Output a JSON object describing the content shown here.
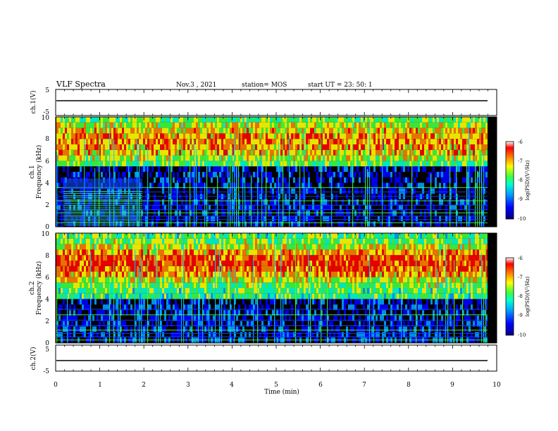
{
  "header": {
    "title": "VLF Spectra",
    "date": "Nov.3 , 2021",
    "station": "station= MOS",
    "start": "start UT = 23: 50: 1"
  },
  "chart_data": {
    "type": "heatmap",
    "x_axis": {
      "label": "Time (min)",
      "range": [
        0,
        10
      ],
      "ticks": [
        "0",
        "1",
        "2",
        "3",
        "4",
        "5",
        "6",
        "7",
        "8",
        "9",
        "10"
      ]
    },
    "panels": [
      {
        "label": "ch.1(V)",
        "kind": "waveform",
        "ylim": [
          -5,
          5
        ],
        "ticks": [
          "5",
          "-5"
        ],
        "baseline": 0
      },
      {
        "label": "ch.1\nFrequency (kHz)",
        "label_lines": [
          "ch.1",
          "Frequency (kHz)"
        ],
        "kind": "spectrogram",
        "ylim": [
          0,
          10
        ],
        "ticks": [
          "0",
          "2",
          "4",
          "6",
          "8",
          "10"
        ],
        "colorbar": {
          "label": "log(PSD)(V²/Hz)",
          "range": [
            -10,
            -6
          ],
          "ticks": [
            "-6",
            "-7",
            "-8",
            "-9",
            "-10"
          ]
        }
      },
      {
        "label": "ch.2\nFrequency (kHz)",
        "label_lines": [
          "ch.2",
          "Frequency (kHz)"
        ],
        "kind": "spectrogram",
        "ylim": [
          0,
          10
        ],
        "ticks": [
          "0",
          "2",
          "4",
          "6",
          "8",
          "10"
        ],
        "colorbar": {
          "label": "log(PSD)(V²/Hz)",
          "range": [
            -10,
            -6
          ],
          "ticks": [
            "-6",
            "-7",
            "-8",
            "-9",
            "-10"
          ]
        }
      },
      {
        "label": "ch.2(V)",
        "kind": "waveform",
        "ylim": [
          -5,
          5
        ],
        "ticks": [
          "5",
          "-5"
        ],
        "baseline": 0
      }
    ],
    "colormap": [
      "#000080",
      "#0000ff",
      "#00a0ff",
      "#00ffd0",
      "#40ff40",
      "#ffff00",
      "#ff8000",
      "#ff0000",
      "#ffffff"
    ]
  }
}
